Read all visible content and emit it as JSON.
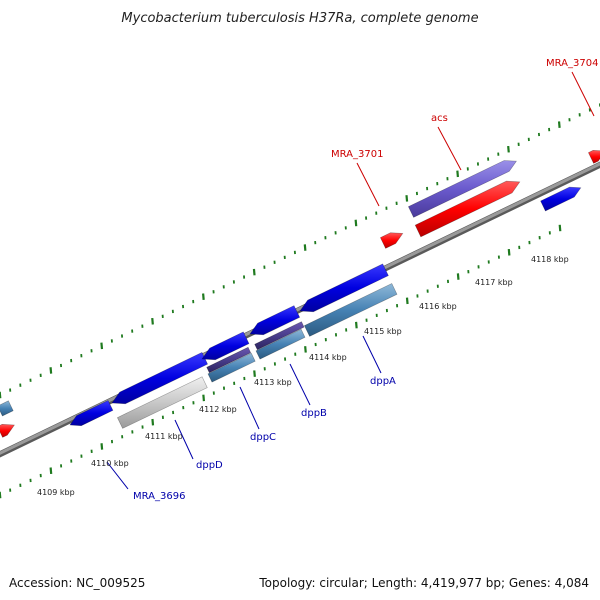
{
  "title": "Mycobacterium tuberculosis H37Ra, complete genome",
  "footer": {
    "accession": "Accession: NC_009525",
    "summary": "Topology: circular; Length: 4,419,977 bp; Genes: 4,084"
  },
  "colors": {
    "backbone": "#808080",
    "tick": "#1f7a1f",
    "forward_gene": "#ff0000",
    "reverse_gene": "#0000e6",
    "label_forward": "#cc0000",
    "label_reverse": "#0000aa"
  },
  "kbp_ticks": [
    "4109 kbp",
    "4110 kbp",
    "4111 kbp",
    "4112 kbp",
    "4113 kbp",
    "4114 kbp",
    "4115 kbp",
    "4116 kbp",
    "4117 kbp",
    "4118 kbp"
  ],
  "gene_labels": [
    {
      "id": "mra3696",
      "text": "MRA_3696",
      "strand": "reverse"
    },
    {
      "id": "dppd",
      "text": "dppD",
      "strand": "reverse"
    },
    {
      "id": "dppc",
      "text": "dppC",
      "strand": "reverse"
    },
    {
      "id": "dppb",
      "text": "dppB",
      "strand": "reverse"
    },
    {
      "id": "dppa",
      "text": "dppA",
      "strand": "reverse"
    },
    {
      "id": "mra3701",
      "text": "MRA_3701",
      "strand": "forward"
    },
    {
      "id": "acs",
      "text": "acs",
      "strand": "forward"
    },
    {
      "id": "mra3704",
      "text": "MRA_3704",
      "strand": "forward"
    }
  ]
}
